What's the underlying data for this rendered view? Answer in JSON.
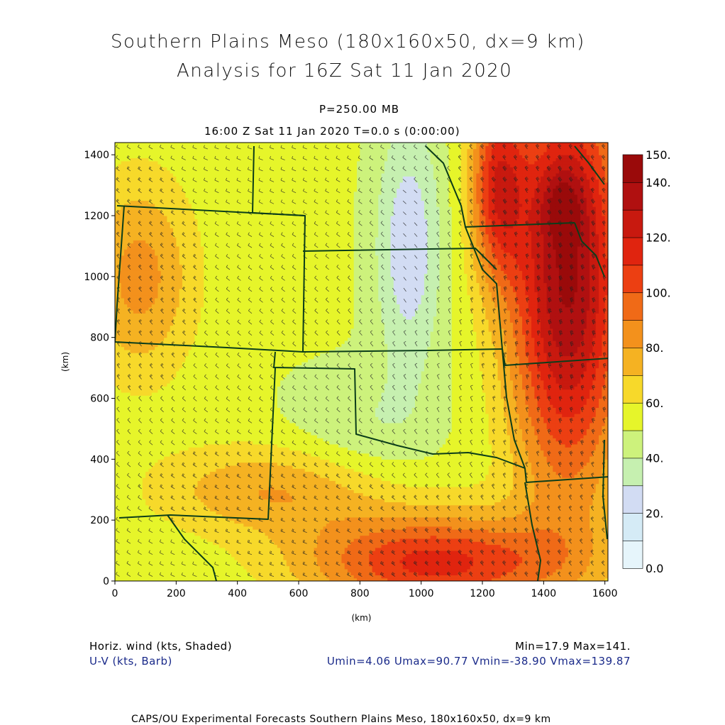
{
  "header": {
    "title_line1": "Southern Plains Meso (180x160x50, dx=9 km)",
    "title_line2": "Analysis for 16Z Sat 11 Jan 2020",
    "pressure": "P=250.00 MB",
    "time": "16:00 Z Sat 11 Jan 2020    T=0.0 s (0:00:00)"
  },
  "footer": {
    "field1": "Horiz. wind (kts, Shaded)",
    "field2": "U-V (kts, Barb)",
    "minmax": "Min=17.9 Max=141.",
    "uvstats": "Umin=4.06 Umax=90.77 Vmin=-38.90 Vmax=139.87",
    "credit": "CAPS/OU Experimental Forecasts  Southern Plains Meso, 180x160x50, dx=9 km"
  },
  "colors": {
    "boundary": "#0b3d1a",
    "barb": "#202020"
  },
  "chart_data": {
    "type": "heatmap",
    "title": "Southern Plains Meso (180x160x50, dx=9 km)",
    "xlabel": "(km)",
    "ylabel": "(km)",
    "xlim": [
      0,
      1610
    ],
    "ylim": [
      0,
      1440
    ],
    "x_ticks": [
      0,
      200,
      400,
      600,
      800,
      1000,
      1200,
      1400,
      1600
    ],
    "y_ticks": [
      0,
      200,
      400,
      600,
      800,
      1000,
      1200,
      1400
    ],
    "x_tick_labels": [
      "0",
      "200",
      "400",
      "600",
      "800",
      "1000",
      "1200",
      "1400",
      "1600"
    ],
    "y_tick_labels": [
      "0",
      "200",
      "400",
      "600",
      "800",
      "1000",
      "1200",
      "1400"
    ],
    "field": "Horizontal wind speed (kts)",
    "min": 17.9,
    "max": 141,
    "colorbar": {
      "levels": [
        0,
        10,
        20,
        30,
        40,
        50,
        60,
        70,
        80,
        90,
        100,
        110,
        120,
        130,
        140,
        150
      ],
      "labels": [
        "0.0",
        "20.",
        "40.",
        "60.",
        "80.",
        "100.",
        "120.",
        "140.",
        "150."
      ],
      "label_values": [
        0,
        20,
        40,
        60,
        80,
        100,
        120,
        140,
        150
      ],
      "colors": [
        "#e6f5fb",
        "#d5ebf6",
        "#d2dcf3",
        "#c6f0b0",
        "#cdf27c",
        "#e6f52a",
        "#f7d92a",
        "#f5b222",
        "#f3911c",
        "#f06a17",
        "#ec3f12",
        "#e0240f",
        "#c8190f",
        "#b01010",
        "#9a0a0a"
      ]
    },
    "approx_field_features": [
      {
        "feature": "speed minimum (light blue)",
        "x": 960,
        "y": 1150,
        "value": 25
      },
      {
        "feature": "jet core (dark red)",
        "x": 1460,
        "y": 1240,
        "value": 141
      },
      {
        "feature": "southern jet branch (orange)",
        "x": 1100,
        "y": 80,
        "value": 100
      },
      {
        "feature": "western orange region",
        "x": 150,
        "y": 1000,
        "value": 85
      }
    ]
  }
}
